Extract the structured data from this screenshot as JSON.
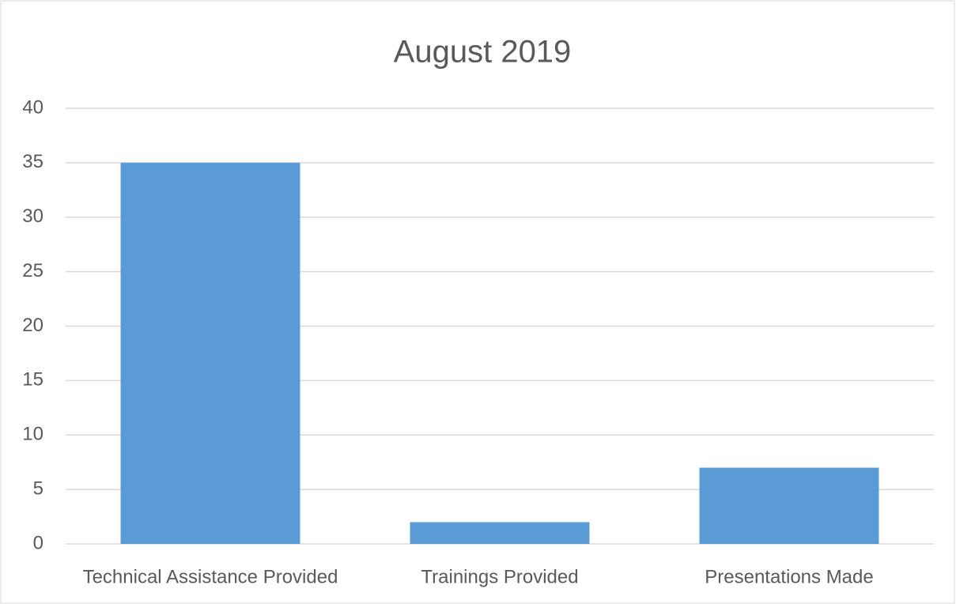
{
  "chart_data": {
    "type": "bar",
    "title": "August 2019",
    "categories": [
      "Technical Assistance Provided",
      "Trainings Provided",
      "Presentations Made"
    ],
    "values": [
      35,
      2,
      7
    ],
    "color": "#5b9bd5",
    "ylim": [
      0,
      40
    ],
    "yticks": [
      0,
      5,
      10,
      15,
      20,
      25,
      30,
      35,
      40
    ],
    "grid": true
  }
}
